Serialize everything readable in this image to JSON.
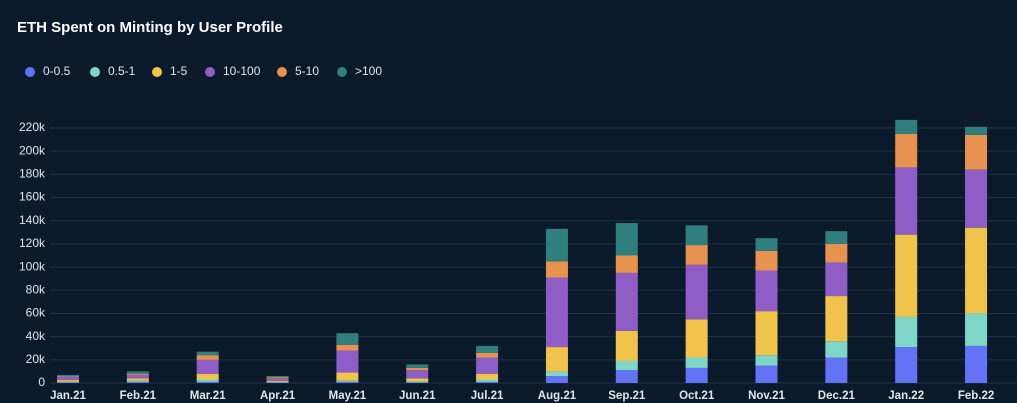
{
  "chart_data": {
    "type": "stacked-bar",
    "title": "ETH Spent on Minting by User Profile",
    "categories": [
      "Jan.21",
      "Feb.21",
      "Mar.21",
      "Apr.21",
      "May.21",
      "Jun.21",
      "Jul.21",
      "Aug.21",
      "Sep.21",
      "Oct.21",
      "Nov.21",
      "Dec.21",
      "Jan.22",
      "Feb.22"
    ],
    "series": [
      {
        "name": "0-0.5",
        "color": "#6373f6",
        "values": [
          500,
          1000,
          1000,
          500,
          1000,
          500,
          1000,
          6000,
          11000,
          13000,
          15000,
          22000,
          31000,
          32000
        ]
      },
      {
        "name": "0.5-1",
        "color": "#7ed6c9",
        "values": [
          500,
          1000,
          2000,
          500,
          1000,
          1000,
          2000,
          4000,
          8000,
          9000,
          9000,
          14000,
          26000,
          28000
        ]
      },
      {
        "name": "1-5",
        "color": "#f0c34a",
        "values": [
          1500,
          2000,
          5000,
          1000,
          7000,
          2500,
          5000,
          21000,
          26000,
          33000,
          38000,
          39000,
          71000,
          74000
        ]
      },
      {
        "name": "10-100",
        "color": "#8f5dc6",
        "values": [
          3000,
          3000,
          12000,
          2000,
          19000,
          7000,
          14000,
          60000,
          50000,
          47000,
          35000,
          29000,
          58000,
          50000
        ]
      },
      {
        "name": "5-10",
        "color": "#e8924f",
        "values": [
          500,
          1000,
          4000,
          1000,
          5000,
          2000,
          4000,
          14000,
          15000,
          17000,
          17000,
          16000,
          29000,
          30000
        ]
      },
      {
        "name": ">100",
        "color": "#2f7f7e",
        "values": [
          1000,
          2000,
          3000,
          1000,
          10000,
          3000,
          6000,
          28000,
          28000,
          17000,
          11000,
          11000,
          12000,
          7000
        ]
      }
    ],
    "ylim": [
      0,
      230000
    ],
    "yticks": [
      {
        "value": 0,
        "label": "0"
      },
      {
        "value": 20000,
        "label": "20k"
      },
      {
        "value": 40000,
        "label": "40k"
      },
      {
        "value": 60000,
        "label": "60k"
      },
      {
        "value": 80000,
        "label": "80k"
      },
      {
        "value": 100000,
        "label": "100k"
      },
      {
        "value": 120000,
        "label": "120k"
      },
      {
        "value": 140000,
        "label": "140k"
      },
      {
        "value": 160000,
        "label": "160k"
      },
      {
        "value": 180000,
        "label": "180k"
      },
      {
        "value": 200000,
        "label": "200k"
      },
      {
        "value": 220000,
        "label": "220k"
      }
    ],
    "grid": true
  }
}
